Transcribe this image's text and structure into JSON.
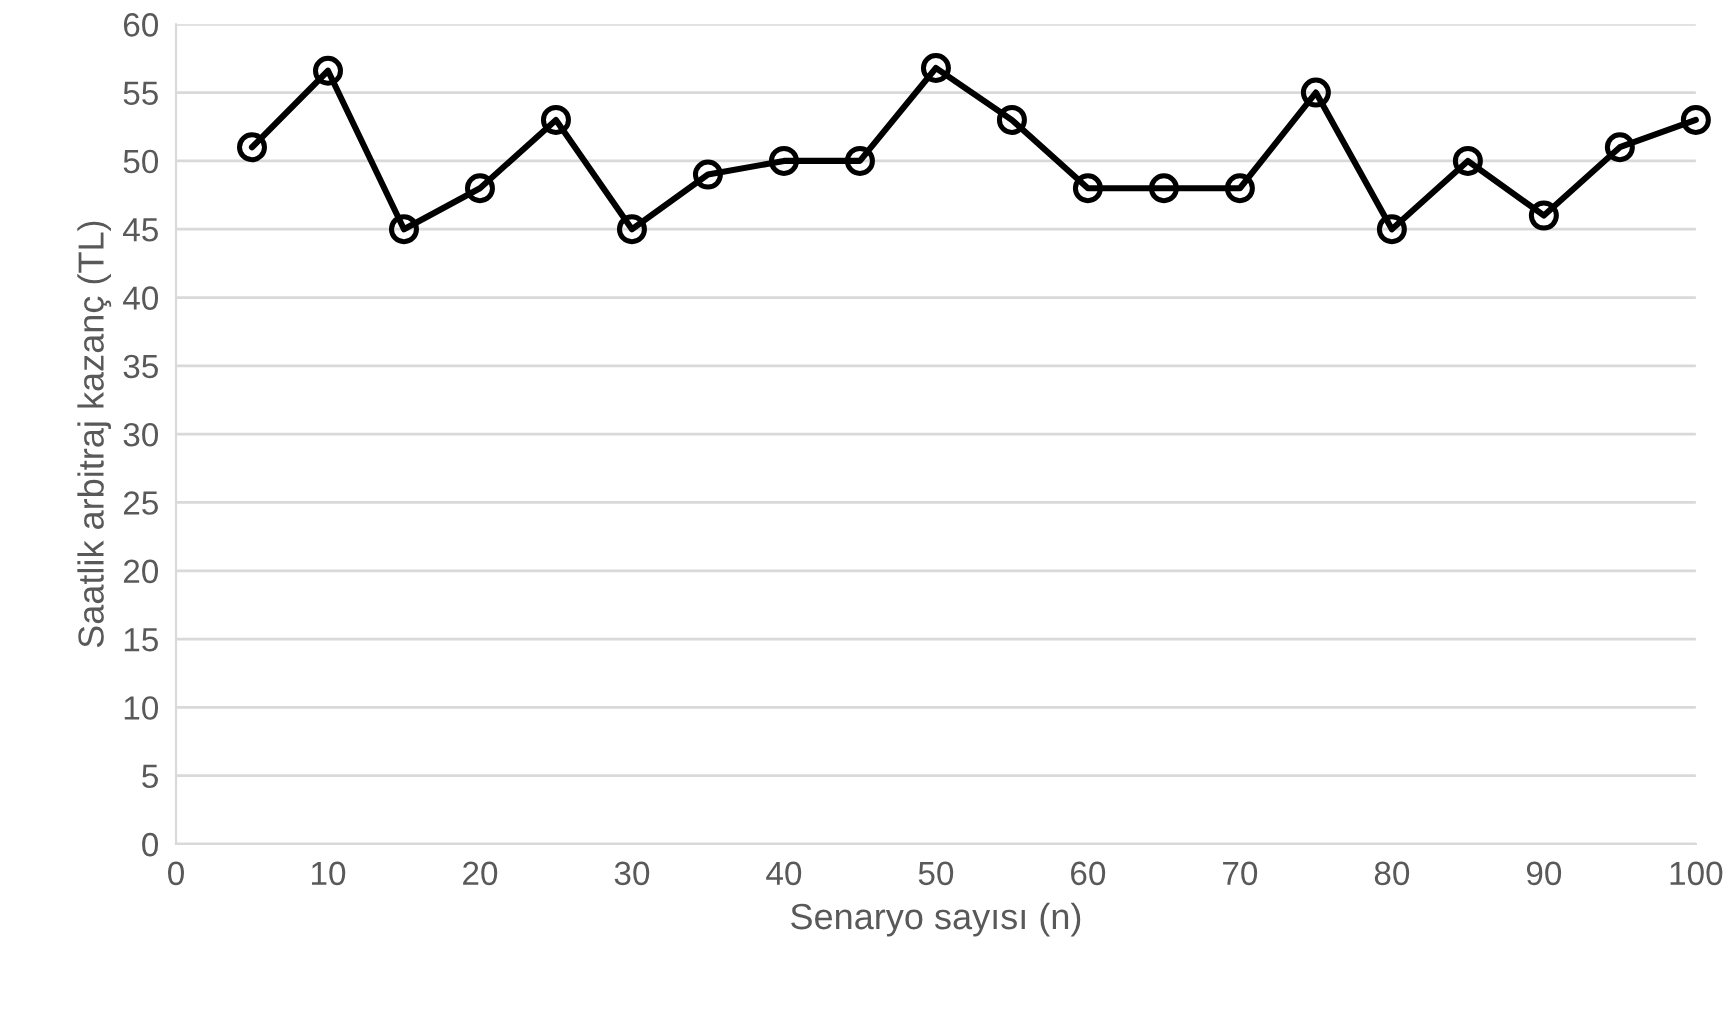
{
  "chart_data": {
    "type": "line",
    "xlabel": "Senaryo sayısı (n)",
    "ylabel": "Saatlik arbitraj kazanç (TL)",
    "x": [
      5,
      10,
      15,
      20,
      25,
      30,
      35,
      40,
      45,
      50,
      55,
      60,
      65,
      70,
      75,
      80,
      85,
      90,
      95,
      100
    ],
    "series": [
      {
        "color": "#000000",
        "values": [
          51,
          56.6,
          45,
          48,
          53,
          45,
          49,
          50,
          50,
          56.8,
          53,
          48,
          48,
          48,
          55,
          45,
          50,
          46,
          51,
          53
        ]
      }
    ],
    "xlim": [
      0,
      100
    ],
    "xticks": [
      0,
      10,
      20,
      30,
      40,
      50,
      60,
      70,
      80,
      90,
      100
    ],
    "ylim": [
      0,
      60
    ],
    "yticks": [
      0,
      5,
      10,
      15,
      20,
      25,
      30,
      35,
      40,
      45,
      50,
      55,
      60
    ],
    "grid": "y",
    "marker": "circle",
    "line_style": "solid"
  }
}
